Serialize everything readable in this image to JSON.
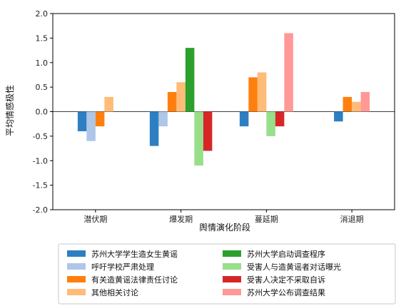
{
  "chart_data": {
    "type": "bar",
    "xlabel": "舆情演化阶段",
    "ylabel": "平均情感极性",
    "ylim": [
      -2.0,
      2.0
    ],
    "yticks": [
      "-2.0",
      "-1.5",
      "-1.0",
      "-0.5",
      "0.0",
      "0.5",
      "1.0",
      "1.5",
      "2.0"
    ],
    "categories": [
      "潜伏期",
      "爆发期",
      "蔓延期",
      "消退期"
    ],
    "grid": false,
    "legend_position": "bottom",
    "series": [
      {
        "name": "苏州大学学生造女生黄谣",
        "color": "#2e7fc1",
        "values": [
          -0.4,
          -0.7,
          -0.3,
          -0.2
        ]
      },
      {
        "name": "呼吁学校严肃处理",
        "color": "#aec7e8",
        "values": [
          -0.6,
          -0.3,
          null,
          null
        ]
      },
      {
        "name": "有关造黄谣法律责任讨论",
        "color": "#ff7f0e",
        "values": [
          -0.3,
          0.4,
          0.7,
          0.3
        ]
      },
      {
        "name": "其他相关讨论",
        "color": "#ffbb78",
        "values": [
          0.3,
          0.6,
          0.8,
          0.2
        ]
      },
      {
        "name": "苏州大学启动调查程序",
        "color": "#2ca02c",
        "values": [
          null,
          1.3,
          null,
          null
        ]
      },
      {
        "name": "受害人与造黄谣者对话曝光",
        "color": "#98df8a",
        "values": [
          null,
          -1.1,
          -0.5,
          null
        ]
      },
      {
        "name": "受害人决定不采取自诉",
        "color": "#d62728",
        "values": [
          null,
          -0.8,
          -0.3,
          null
        ]
      },
      {
        "name": "苏州大学公布调查结果",
        "color": "#ff9896",
        "values": [
          null,
          null,
          1.6,
          0.4
        ]
      }
    ]
  }
}
